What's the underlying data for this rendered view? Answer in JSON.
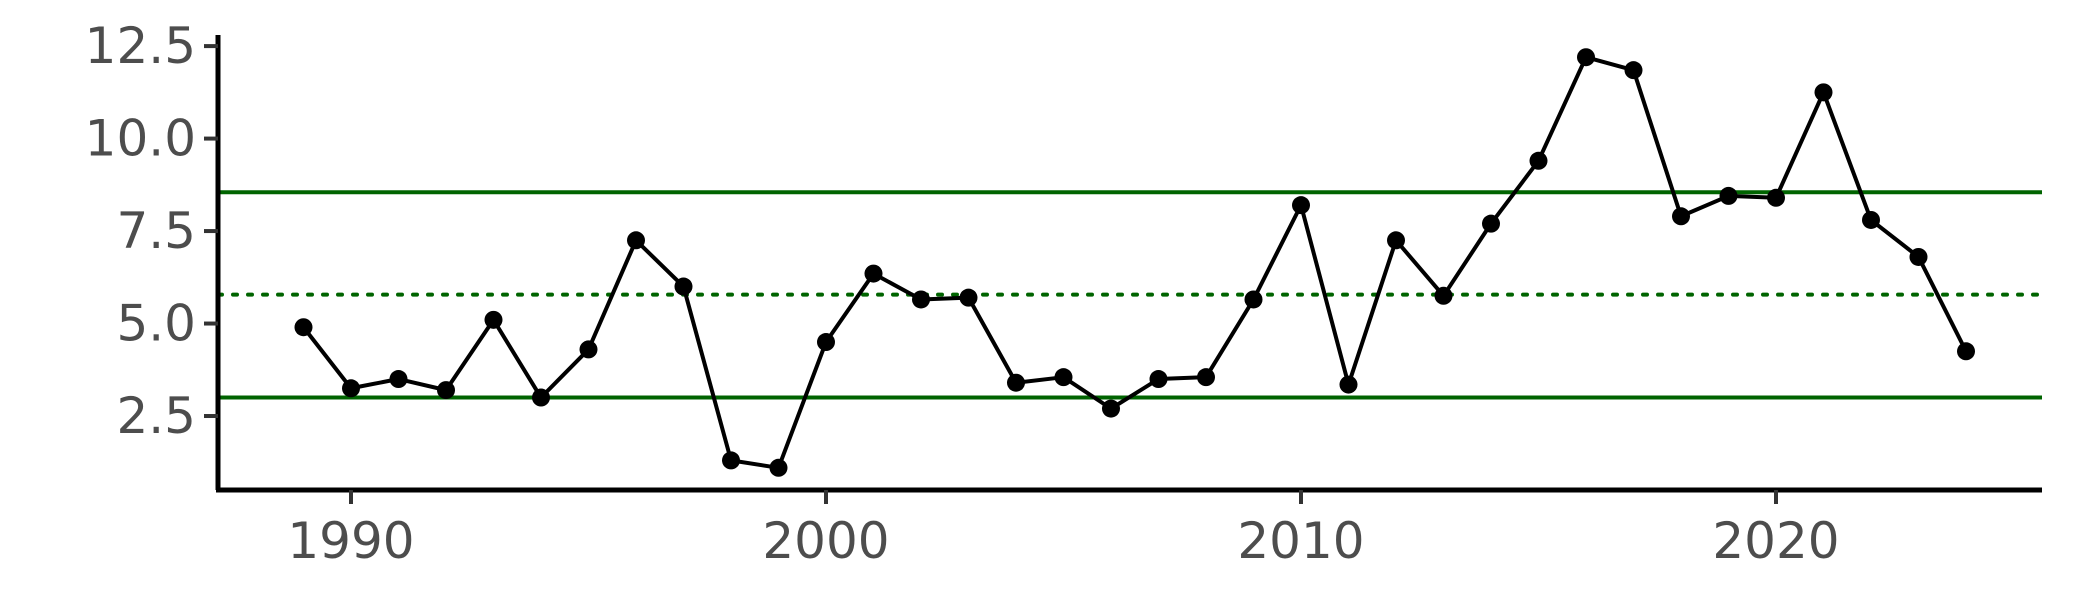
{
  "chart_data": {
    "type": "line",
    "title": "",
    "xlabel": "",
    "ylabel": "",
    "xlim": [
      1987.2,
      2025.6
    ],
    "ylim": [
      0.5,
      12.8
    ],
    "x_ticks": [
      1990,
      2000,
      2010,
      2020
    ],
    "y_ticks": [
      2.5,
      5.0,
      7.5,
      10.0,
      12.5
    ],
    "y_tick_labels": [
      "2.5",
      "5.0",
      "7.5",
      "10.0",
      "12.5"
    ],
    "x_tick_labels": [
      "1990",
      "2000",
      "2010",
      "2020"
    ],
    "grid": false,
    "legend": "none",
    "series": [
      {
        "x": [
          1989,
          1990,
          1991,
          1992,
          1993,
          1994,
          1995,
          1996,
          1997,
          1998,
          1999,
          2000,
          2001,
          2002,
          2003,
          2004,
          2005,
          2006,
          2007,
          2008,
          2009,
          2010,
          2011,
          2012,
          2013,
          2014,
          2015,
          2016,
          2017,
          2018,
          2019,
          2020,
          2021,
          2022,
          2023,
          2024
        ],
        "values": [
          4.9,
          3.25,
          3.5,
          3.2,
          5.1,
          3.0,
          4.3,
          7.25,
          6.0,
          1.3,
          1.1,
          4.5,
          6.35,
          5.65,
          5.7,
          3.4,
          3.55,
          2.7,
          3.5,
          3.55,
          5.65,
          8.2,
          3.35,
          7.25,
          5.75,
          7.7,
          9.4,
          12.2,
          11.85,
          7.9,
          8.45,
          8.4,
          11.25,
          7.8,
          6.8,
          4.25
        ],
        "color": "#000000"
      }
    ],
    "reference_lines": [
      {
        "kind": "upper-limit",
        "value": 8.55,
        "style": "solid",
        "color": "#006400"
      },
      {
        "kind": "mean",
        "value": 5.78,
        "style": "dotted",
        "color": "#006400"
      },
      {
        "kind": "lower-limit",
        "value": 3.0,
        "style": "solid",
        "color": "#006400"
      }
    ]
  }
}
